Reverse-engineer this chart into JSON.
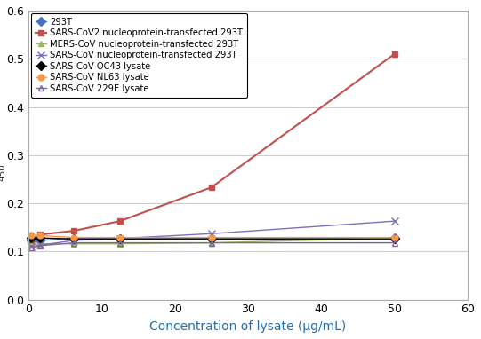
{
  "xlabel": "Concentration of lysate (μg/mL)",
  "xlim": [
    0,
    60
  ],
  "ylim": [
    0,
    0.6
  ],
  "xticks": [
    0,
    10,
    20,
    30,
    40,
    50,
    60
  ],
  "yticks": [
    0,
    0.1,
    0.2,
    0.3,
    0.4,
    0.5,
    0.6
  ],
  "series": [
    {
      "label": "293T",
      "x": [
        0.4,
        1.6,
        6.25,
        12.5,
        25,
        50
      ],
      "y": [
        0.123,
        0.123,
        0.127,
        0.127,
        0.127,
        0.128
      ],
      "color": "#4472C4",
      "marker": "D",
      "linestyle": "-",
      "linewidth": 1.0,
      "markersize": 5,
      "markerfacecolor": "#4472C4",
      "markeredgecolor": "#4472C4"
    },
    {
      "label": "SARS-CoV2 nucleoprotein-transfected 293T",
      "x": [
        0.4,
        1.6,
        6.25,
        12.5,
        25,
        50
      ],
      "y": [
        0.123,
        0.135,
        0.143,
        0.163,
        0.233,
        0.51
      ],
      "color": "#C0504D",
      "marker": "s",
      "linestyle": "-",
      "linewidth": 1.5,
      "markersize": 5,
      "markerfacecolor": "#C0504D",
      "markeredgecolor": "#C0504D"
    },
    {
      "label": "MERS-CoV nucleoprotein-transfected 293T",
      "x": [
        0.4,
        1.6,
        6.25,
        12.5,
        25,
        50
      ],
      "y": [
        0.113,
        0.116,
        0.116,
        0.116,
        0.118,
        0.128
      ],
      "color": "#9BBB59",
      "marker": "^",
      "linestyle": "-",
      "linewidth": 1.0,
      "markersize": 5,
      "markerfacecolor": "#9BBB59",
      "markeredgecolor": "#9BBB59"
    },
    {
      "label": "SARS-CoV nucleoprotein-transfected 293T",
      "x": [
        0.4,
        1.6,
        6.25,
        12.5,
        25,
        50
      ],
      "y": [
        0.11,
        0.113,
        0.123,
        0.127,
        0.137,
        0.163
      ],
      "color": "#7F6FBB",
      "marker": "x",
      "linestyle": "-",
      "linewidth": 1.0,
      "markersize": 6,
      "markerfacecolor": "#7F6FBB",
      "markeredgecolor": "#7F6FBB"
    },
    {
      "label": "SARS-CoV OC43 lysate",
      "x": [
        0.4,
        1.6,
        6.25,
        12.5,
        25,
        50
      ],
      "y": [
        0.128,
        0.128,
        0.126,
        0.126,
        0.126,
        0.126
      ],
      "color": "#000000",
      "marker": "D",
      "linestyle": "-",
      "linewidth": 1.0,
      "markersize": 5,
      "markerfacecolor": "#000000",
      "markeredgecolor": "#000000"
    },
    {
      "label": "SARS-CoV NL63 lysate",
      "x": [
        0.4,
        1.6,
        6.25,
        12.5,
        25,
        50
      ],
      "y": [
        0.133,
        0.133,
        0.129,
        0.129,
        0.129,
        0.129
      ],
      "color": "#F79646",
      "marker": "o",
      "linestyle": "-",
      "linewidth": 1.0,
      "markersize": 5,
      "markerfacecolor": "#F79646",
      "markeredgecolor": "#F79646"
    },
    {
      "label": "SARS-CoV 229E lysate",
      "x": [
        0.4,
        1.6,
        6.25,
        12.5,
        25,
        50
      ],
      "y": [
        0.108,
        0.112,
        0.118,
        0.118,
        0.118,
        0.118
      ],
      "color": "#8064A2",
      "marker": "^",
      "linestyle": "-",
      "linewidth": 1.0,
      "markersize": 5,
      "markerfacecolor": "none",
      "markeredgecolor": "#8064A2"
    }
  ],
  "legend_fontsize": 7.2,
  "axis_label_fontsize": 10,
  "tick_fontsize": 9,
  "background_color": "#FFFFFF",
  "grid_color": "#CCCCCC",
  "ylabel_sub": "450",
  "xlabel_color": "#1F6FB5"
}
